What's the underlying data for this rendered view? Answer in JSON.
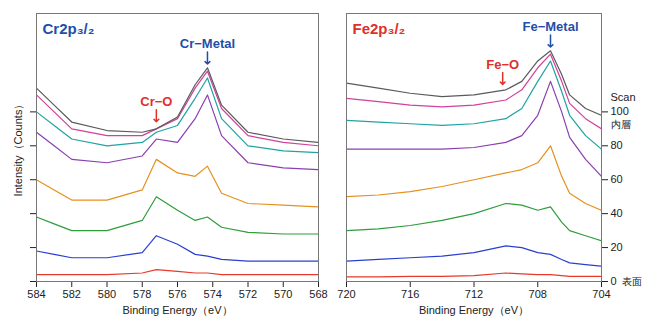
{
  "chart_data": [
    {
      "type": "line",
      "title": "Cr2p₃/₂",
      "xlabel": "Binding Energy（eV）",
      "ylabel": "Intensity（Counts）",
      "x": [
        584,
        583,
        582,
        580,
        578,
        577.2,
        576,
        575,
        574.3,
        573.5,
        572,
        570,
        568
      ],
      "xlim": [
        584,
        568
      ],
      "xticks": [
        584,
        582,
        580,
        578,
        576,
        574,
        572,
        570,
        568
      ],
      "ylim": [
        0,
        158
      ],
      "yticks": [
        0,
        20,
        40,
        60,
        80,
        100
      ],
      "tick_labels": "x",
      "series": [
        {
          "color": "#e8392b",
          "values": [
            4,
            4,
            4,
            4,
            5,
            7,
            6,
            5,
            5,
            4,
            4,
            4,
            4
          ]
        },
        {
          "color": "#2a3fd0",
          "values": [
            18,
            16,
            14,
            14,
            17,
            27,
            22,
            16,
            15,
            13,
            12,
            12,
            12
          ]
        },
        {
          "color": "#2e9e3a",
          "values": [
            38,
            34,
            30,
            30,
            36,
            50,
            42,
            36,
            38,
            32,
            29,
            28,
            28
          ]
        },
        {
          "color": "#e6901e",
          "values": [
            60,
            54,
            48,
            48,
            54,
            72,
            64,
            62,
            68,
            52,
            46,
            45,
            44
          ]
        },
        {
          "color": "#8a3fb0",
          "values": [
            88,
            80,
            72,
            70,
            74,
            84,
            82,
            96,
            110,
            86,
            70,
            67,
            66
          ]
        },
        {
          "color": "#1fa3a3",
          "values": [
            100,
            92,
            84,
            80,
            82,
            88,
            92,
            108,
            120,
            96,
            80,
            77,
            76
          ]
        },
        {
          "color": "#d0409c",
          "values": [
            110,
            100,
            90,
            86,
            86,
            90,
            96,
            114,
            124,
            102,
            86,
            82,
            80
          ]
        },
        {
          "color": "#5a5a5a",
          "values": [
            114,
            104,
            94,
            89,
            88,
            90,
            97,
            116,
            126,
            104,
            88,
            84,
            82
          ]
        }
      ],
      "annotations": [
        {
          "text": "Cr−Metal",
          "x": 574.3,
          "y": 140
        },
        {
          "text": "Cr−O",
          "x": 577.2,
          "y": 106
        }
      ]
    },
    {
      "type": "line",
      "title": "Fe2p₃/₂",
      "xlabel": "Binding Energy（eV）",
      "y2label": "Scan",
      "x": [
        720,
        718,
        716,
        714,
        712,
        710,
        709,
        708,
        707.2,
        706.5,
        706,
        705,
        704
      ],
      "xlim": [
        720,
        704
      ],
      "xticks": [
        720,
        716,
        712,
        708,
        704
      ],
      "y2lim": [
        0,
        158
      ],
      "y2ticks": [
        0,
        20,
        40,
        60,
        80,
        100
      ],
      "series": [
        {
          "axis": "y2",
          "color": "#e8392b",
          "values": [
            2.7,
            2.7,
            3,
            3,
            3.5,
            5,
            4.5,
            4,
            4,
            3.5,
            3,
            3,
            3
          ]
        },
        {
          "axis": "y2",
          "color": "#2a3fd0",
          "values": [
            12,
            13,
            14,
            15,
            17,
            21,
            20,
            17,
            16,
            13,
            11,
            10,
            9
          ]
        },
        {
          "axis": "y2",
          "color": "#2e9e3a",
          "values": [
            30,
            31,
            33,
            36,
            40,
            46,
            45,
            42,
            44,
            35,
            30,
            27,
            24
          ]
        },
        {
          "axis": "y2",
          "color": "#e6901e",
          "values": [
            50,
            51,
            53,
            56,
            60,
            64,
            66,
            70,
            80,
            62,
            52,
            46,
            42
          ]
        },
        {
          "axis": "y2",
          "color": "#8a3fb0",
          "values": [
            78,
            78,
            78,
            78,
            79,
            82,
            86,
            98,
            118,
            100,
            85,
            72,
            62
          ]
        },
        {
          "axis": "y2",
          "color": "#1fa3a3",
          "values": [
            95,
            94,
            93,
            92,
            93,
            96,
            102,
            118,
            130,
            112,
            98,
            86,
            78
          ]
        },
        {
          "axis": "y2",
          "color": "#d0409c",
          "values": [
            108,
            106,
            104,
            103,
            104,
            107,
            113,
            126,
            134,
            118,
            105,
            96,
            90
          ]
        },
        {
          "axis": "y2",
          "color": "#5a5a5a",
          "values": [
            117,
            114,
            111,
            109,
            110,
            113,
            118,
            130,
            136,
            122,
            110,
            102,
            98
          ]
        }
      ],
      "annotations": [
        {
          "text": "Fe−Metal",
          "x": 707.2,
          "y": 150
        },
        {
          "text": "Fe−O",
          "x": 710.2,
          "y": 128
        }
      ],
      "y2_annotations": [
        {
          "text": "内層",
          "y": 100
        },
        {
          "text": "表面",
          "y": 0
        }
      ]
    }
  ]
}
